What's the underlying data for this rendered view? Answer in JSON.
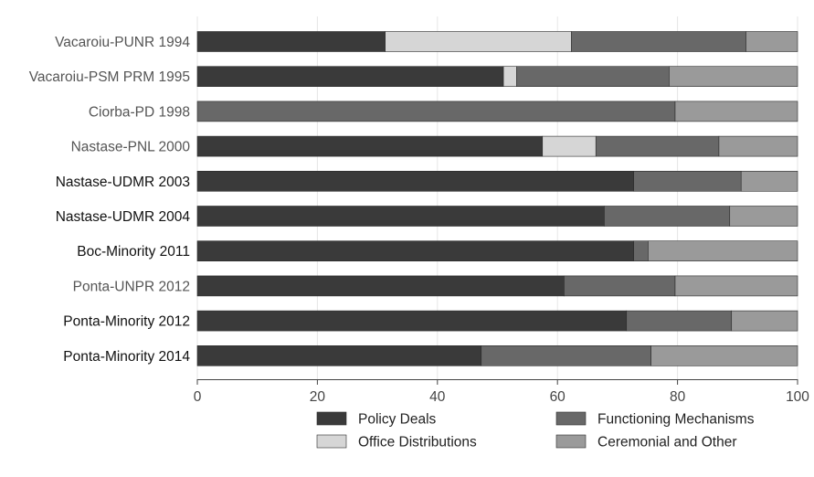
{
  "chart_data": {
    "type": "bar",
    "orientation": "horizontal",
    "stacked": true,
    "categories": [
      "Vacaroiu-PUNR 1994",
      "Vacaroiu-PSM PRM 1995",
      "Ciorba-PD 1998",
      "Nastase-PNL 2000",
      "Nastase-UDMR 2003",
      "Nastase-UDMR 2004",
      "Boc-Minority 2011",
      "Ponta-UNPR 2012",
      "Ponta-Minority 2012",
      "Ponta-Minority 2014"
    ],
    "category_label_colors": [
      "#555555",
      "#555555",
      "#555555",
      "#555555",
      "#111111",
      "#111111",
      "#111111",
      "#555555",
      "#111111",
      "#111111"
    ],
    "series": [
      {
        "name": "Policy Deals",
        "color": "#3a3a3a",
        "values": [
          31.3,
          51.0,
          0.0,
          57.5,
          72.7,
          67.8,
          72.7,
          61.1,
          71.5,
          47.3
        ]
      },
      {
        "name": "Office Distributions",
        "color": "#d6d6d6",
        "values": [
          31.0,
          2.2,
          0.0,
          8.9,
          0.0,
          0.0,
          0.0,
          0.0,
          0.0,
          0.0
        ]
      },
      {
        "name": "Functioning Mechanisms",
        "color": "#686868",
        "values": [
          29.1,
          25.4,
          79.6,
          20.5,
          17.9,
          20.9,
          2.4,
          18.5,
          17.5,
          28.3
        ]
      },
      {
        "name": "Ceremonial and Other",
        "color": "#9a9a9a",
        "values": [
          8.6,
          21.4,
          20.4,
          13.1,
          9.4,
          11.3,
          24.9,
          20.4,
          11.0,
          24.4
        ]
      }
    ],
    "xlim": [
      0,
      100
    ],
    "xticks": [
      0,
      20,
      40,
      60,
      80,
      100
    ],
    "grid": true,
    "legend_position": "bottom",
    "title": "",
    "xlabel": "",
    "ylabel": ""
  }
}
